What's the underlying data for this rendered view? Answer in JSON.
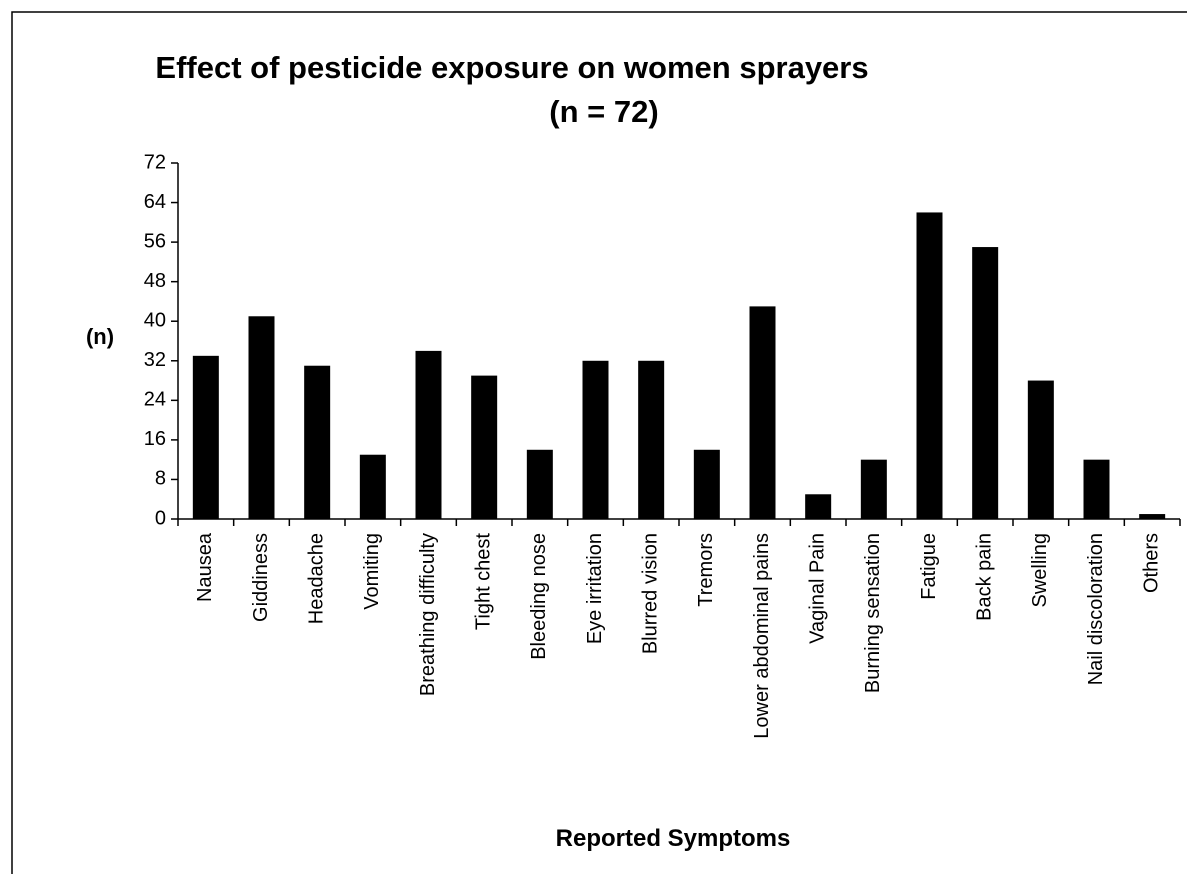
{
  "chart_data": {
    "type": "bar",
    "title": "Effect of pesticide exposure on women sprayers",
    "subtitle": "(n = 72)",
    "x_label": "Reported Symptoms",
    "y_label": "(n)",
    "categories": [
      "Nausea",
      "Giddiness",
      "Headache",
      "Vomiting",
      "Breathing difficulty",
      "Tight chest",
      "Bleeding nose",
      "Eye irritation",
      "Blurred vision",
      "Tremors",
      "Lower abdominal pains",
      "Vaginal Pain",
      "Burning sensation",
      "Fatigue",
      "Back pain",
      "Swelling",
      "Nail discoloration",
      "Others"
    ],
    "values": [
      33,
      41,
      31,
      13,
      34,
      29,
      14,
      32,
      32,
      14,
      43,
      5,
      12,
      62,
      55,
      28,
      12,
      1
    ],
    "color": "#000000",
    "ylim": [
      0,
      72
    ],
    "yticks": [
      0,
      8,
      16,
      24,
      32,
      40,
      48,
      56,
      64,
      72
    ],
    "grid": false
  }
}
